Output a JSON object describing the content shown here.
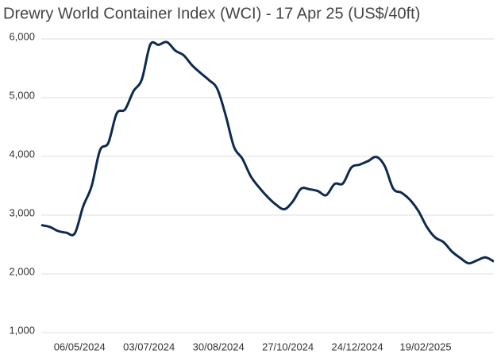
{
  "chart_data": {
    "type": "line",
    "title": "Drewry World Container Index (WCI) - 17 Apr 25 (US$/40ft)",
    "x": [
      "04/04/2024",
      "11/04/2024",
      "18/04/2024",
      "25/04/2024",
      "02/05/2024",
      "09/05/2024",
      "16/05/2024",
      "23/05/2024",
      "30/05/2024",
      "06/06/2024",
      "13/06/2024",
      "20/06/2024",
      "27/06/2024",
      "04/07/2024",
      "11/07/2024",
      "18/07/2024",
      "25/07/2024",
      "01/08/2024",
      "08/08/2024",
      "15/08/2024",
      "22/08/2024",
      "29/08/2024",
      "05/09/2024",
      "12/09/2024",
      "19/09/2024",
      "26/09/2024",
      "03/10/2024",
      "10/10/2024",
      "17/10/2024",
      "24/10/2024",
      "31/10/2024",
      "07/11/2024",
      "14/11/2024",
      "21/11/2024",
      "28/11/2024",
      "05/12/2024",
      "12/12/2024",
      "19/12/2024",
      "26/12/2024",
      "02/01/2025",
      "09/01/2025",
      "16/01/2025",
      "23/01/2025",
      "30/01/2025",
      "06/02/2025",
      "13/02/2025",
      "20/02/2025",
      "27/02/2025",
      "06/03/2025",
      "13/03/2025",
      "20/03/2025",
      "27/03/2025",
      "03/04/2025",
      "10/04/2025",
      "17/04/2025"
    ],
    "series": [
      {
        "name": "WCI",
        "color": "#0e2a4f",
        "values": [
          2830,
          2800,
          2730,
          2700,
          2690,
          3150,
          3490,
          4100,
          4230,
          4730,
          4800,
          5110,
          5310,
          5900,
          5900,
          5945,
          5800,
          5720,
          5550,
          5420,
          5300,
          5150,
          4700,
          4160,
          3960,
          3660,
          3470,
          3310,
          3180,
          3100,
          3230,
          3450,
          3440,
          3410,
          3340,
          3530,
          3540,
          3810,
          3860,
          3920,
          3990,
          3830,
          3450,
          3380,
          3260,
          3070,
          2800,
          2620,
          2540,
          2380,
          2270,
          2180,
          2230,
          2280,
          2210
        ]
      }
    ],
    "xlim": [
      "04/04/2024",
      "17/04/2025"
    ],
    "xticks": [
      "06/05/2024",
      "03/07/2024",
      "30/08/2024",
      "27/10/2024",
      "24/12/2024",
      "19/02/2025"
    ],
    "ylim": [
      1000,
      6000
    ],
    "yticks": [
      {
        "value": 1000,
        "label": "1,000"
      },
      {
        "value": 2000,
        "label": "2,000"
      },
      {
        "value": 3000,
        "label": "3,000"
      },
      {
        "value": 4000,
        "label": "4,000"
      },
      {
        "value": 5000,
        "label": "5,000"
      },
      {
        "value": 6000,
        "label": "6,000"
      }
    ],
    "grid": true
  }
}
